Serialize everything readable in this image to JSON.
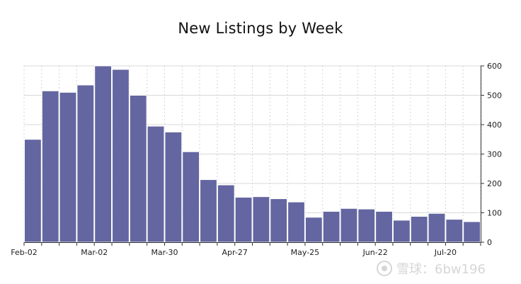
{
  "chart_data": {
    "type": "bar",
    "title": "New Listings by Week",
    "xlabel": "",
    "ylabel": "",
    "y_axis_position": "right",
    "ylim": [
      0,
      600
    ],
    "y_ticks": [
      0,
      100,
      200,
      300,
      400,
      500,
      600
    ],
    "x_tick_labels": [
      "Feb-02",
      "Mar-02",
      "Mar-30",
      "Apr-27",
      "May-25",
      "Jun-22",
      "Jul-20"
    ],
    "x_tick_indices": [
      0,
      4,
      8,
      12,
      16,
      20,
      24
    ],
    "grid": true,
    "bar_color": "#6366a0",
    "values": [
      350,
      515,
      510,
      535,
      600,
      588,
      500,
      395,
      375,
      308,
      213,
      195,
      153,
      155,
      148,
      137,
      85,
      105,
      115,
      113,
      105,
      75,
      88,
      98,
      78,
      70
    ]
  },
  "watermark": {
    "text": "雪球：6bw196"
  }
}
